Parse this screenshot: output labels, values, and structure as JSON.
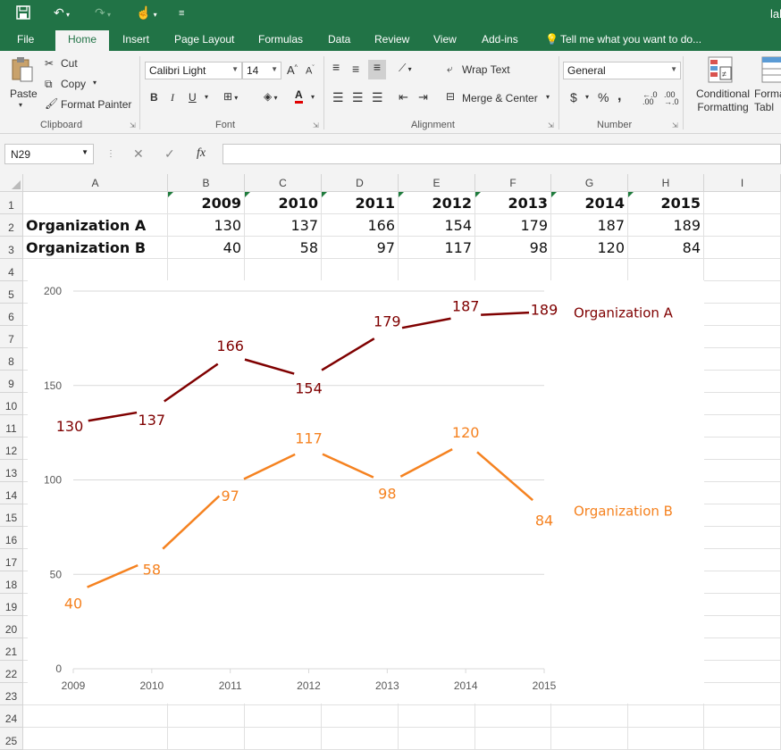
{
  "titlebar": {
    "user_fragment": "lab"
  },
  "tabs": [
    "File",
    "Home",
    "Insert",
    "Page Layout",
    "Formulas",
    "Data",
    "Review",
    "View",
    "Add-ins"
  ],
  "tell_me": "Tell me what you want to do...",
  "ribbon": {
    "clipboard": {
      "paste": "Paste",
      "cut": "Cut",
      "copy": "Copy",
      "format_painter": "Format Painter",
      "label": "Clipboard"
    },
    "font": {
      "name": "Calibri Light",
      "size": "14",
      "label": "Font",
      "bold": "B",
      "italic": "I",
      "underline": "U"
    },
    "alignment": {
      "wrap_text": "Wrap Text",
      "merge_center": "Merge & Center",
      "label": "Alignment"
    },
    "number": {
      "format": "General",
      "label": "Number",
      "currency": "$",
      "percent": "%",
      "comma": ","
    },
    "styles": {
      "conditional_formatting": "Conditional Formatting",
      "format_table_fragment": "Forma Tabl"
    }
  },
  "formula_bar": {
    "name_box": "N29",
    "fx": "fx",
    "value": ""
  },
  "columns": [
    "A",
    "B",
    "C",
    "D",
    "E",
    "F",
    "G",
    "H",
    "I"
  ],
  "rows": [
    "1",
    "2",
    "3",
    "4",
    "5",
    "6",
    "7",
    "8",
    "9",
    "10",
    "11",
    "12",
    "13",
    "14",
    "15",
    "16",
    "17",
    "18",
    "19",
    "20",
    "21",
    "22",
    "23",
    "24",
    "25"
  ],
  "sheet": {
    "years": [
      "2009",
      "2010",
      "2011",
      "2012",
      "2013",
      "2014",
      "2015"
    ],
    "org_a_name": "Organization A",
    "org_b_name": "Organization B",
    "org_a_values": [
      "130",
      "137",
      "166",
      "154",
      "179",
      "187",
      "189"
    ],
    "org_b_values": [
      "40",
      "58",
      "97",
      "117",
      "98",
      "120",
      "84"
    ]
  },
  "chart_data": {
    "type": "line",
    "x": [
      2009,
      2010,
      2011,
      2012,
      2013,
      2014,
      2015
    ],
    "series": [
      {
        "name": "Organization A",
        "values": [
          130,
          137,
          166,
          154,
          179,
          187,
          189
        ],
        "color": "#7f0000"
      },
      {
        "name": "Organization B",
        "values": [
          40,
          58,
          97,
          117,
          98,
          120,
          84
        ],
        "color": "#f58220"
      }
    ],
    "ylim": [
      0,
      200
    ],
    "yticks": [
      0,
      50,
      100,
      150,
      200
    ],
    "grid": true,
    "legend": "right-end labels",
    "xlabel": "",
    "ylabel": "",
    "title": ""
  },
  "colors": {
    "brand": "#217346",
    "gridline": "#d9d9d9"
  }
}
